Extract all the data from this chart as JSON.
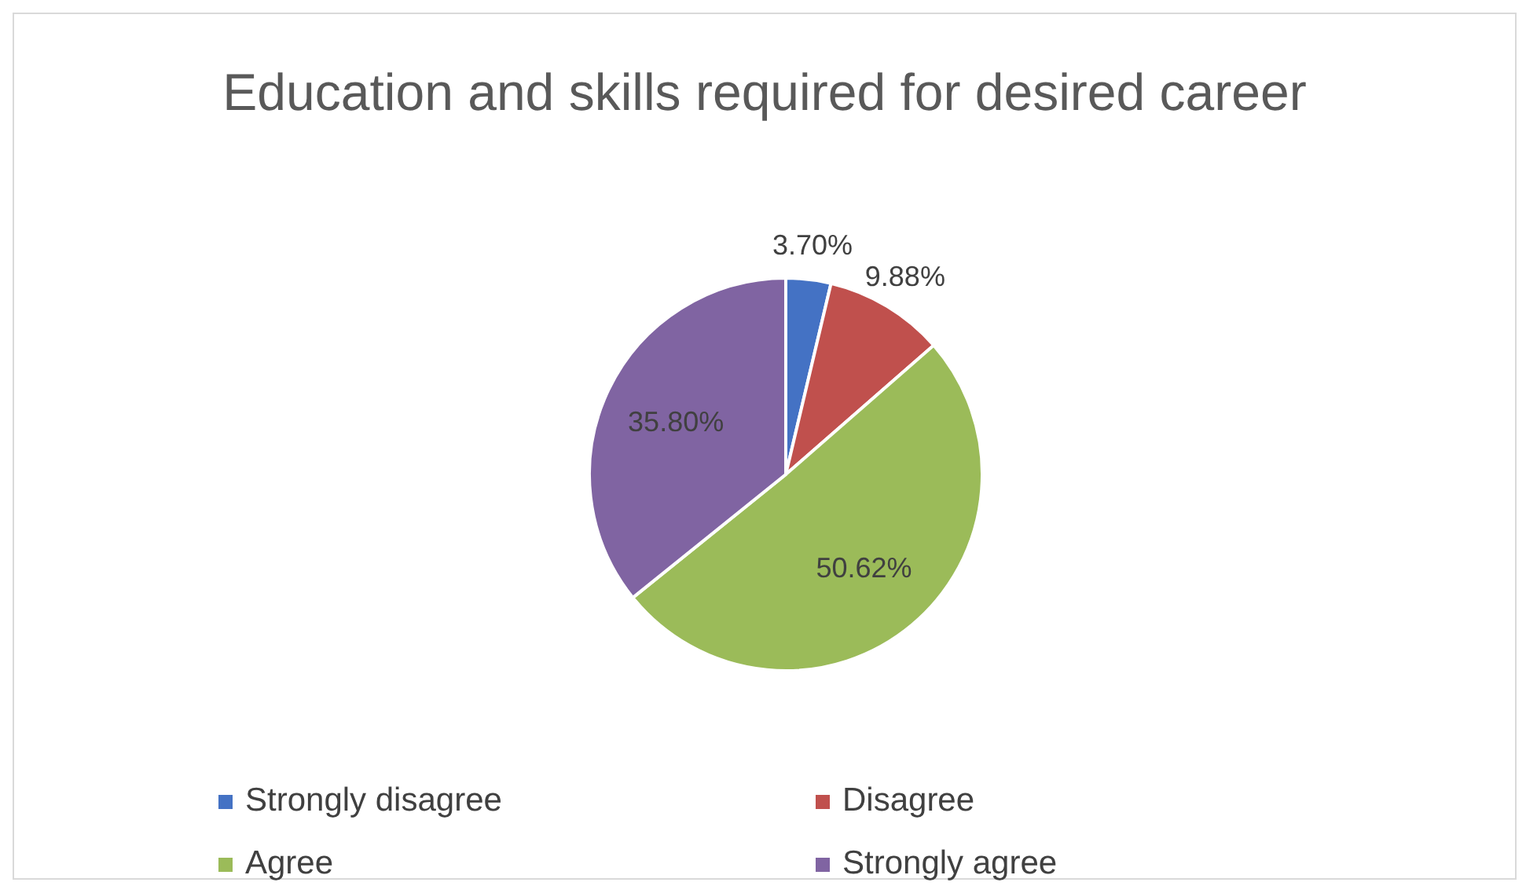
{
  "chart_data": {
    "type": "pie",
    "title": "Education and skills required for desired career",
    "categories": [
      "Strongly disagree",
      "Disagree",
      "Agree",
      "Strongly agree"
    ],
    "values": [
      3.7,
      9.88,
      50.62,
      35.8
    ],
    "value_labels": [
      "3.70%",
      "9.88%",
      "50.62%",
      "35.80%"
    ],
    "colors": [
      "#4472c4",
      "#c0504d",
      "#9bbb59",
      "#8064a2"
    ],
    "legend": "bottom"
  }
}
